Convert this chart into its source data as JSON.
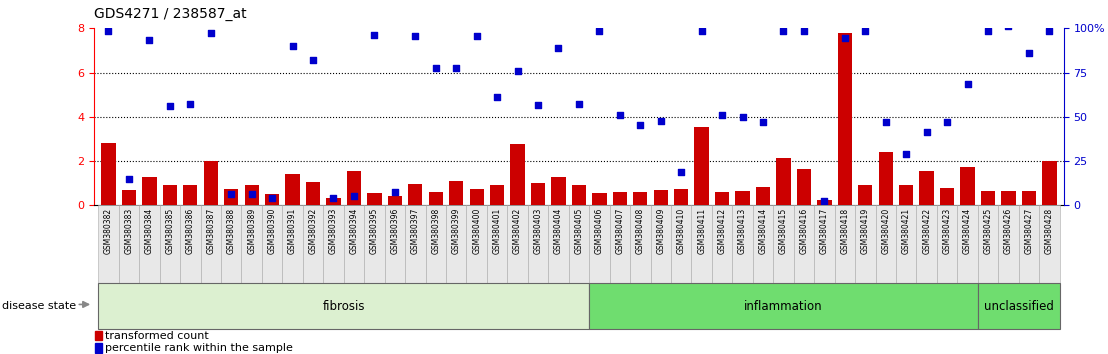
{
  "title": "GDS4271 / 238587_at",
  "samples": [
    "GSM380382",
    "GSM380383",
    "GSM380384",
    "GSM380385",
    "GSM380386",
    "GSM380387",
    "GSM380388",
    "GSM380389",
    "GSM380390",
    "GSM380391",
    "GSM380392",
    "GSM380393",
    "GSM380394",
    "GSM380395",
    "GSM380396",
    "GSM380397",
    "GSM380398",
    "GSM380399",
    "GSM380400",
    "GSM380401",
    "GSM380402",
    "GSM380403",
    "GSM380404",
    "GSM380405",
    "GSM380406",
    "GSM380407",
    "GSM380408",
    "GSM380409",
    "GSM380410",
    "GSM380411",
    "GSM380412",
    "GSM380413",
    "GSM380414",
    "GSM380415",
    "GSM380416",
    "GSM380417",
    "GSM380418",
    "GSM380419",
    "GSM380420",
    "GSM380421",
    "GSM380422",
    "GSM380423",
    "GSM380424",
    "GSM380425",
    "GSM380426",
    "GSM380427",
    "GSM380428"
  ],
  "transformed_count": [
    2.8,
    0.7,
    1.3,
    0.9,
    0.9,
    2.0,
    0.75,
    0.9,
    0.5,
    1.4,
    1.05,
    0.35,
    1.55,
    0.55,
    0.4,
    0.95,
    0.6,
    1.1,
    0.75,
    0.9,
    2.75,
    1.0,
    1.3,
    0.9,
    0.55,
    0.6,
    0.6,
    0.7,
    0.75,
    3.55,
    0.6,
    0.65,
    0.85,
    2.15,
    1.65,
    0.25,
    7.8,
    0.9,
    2.4,
    0.9,
    1.55,
    0.8,
    1.75,
    0.65,
    0.65,
    0.65,
    2.0
  ],
  "percentile_rank": [
    7.9,
    1.2,
    7.45,
    4.5,
    4.6,
    7.8,
    0.5,
    0.5,
    0.35,
    7.2,
    6.55,
    0.35,
    0.4,
    7.7,
    0.6,
    7.65,
    6.2,
    6.2,
    7.65,
    4.9,
    6.05,
    4.55,
    7.1,
    4.6,
    7.9,
    4.1,
    3.65,
    3.8,
    1.5,
    7.9,
    4.1,
    4.0,
    3.75,
    7.9,
    7.9,
    0.2,
    7.55,
    7.9,
    3.75,
    2.3,
    3.3,
    3.75,
    5.5,
    7.9,
    8.1,
    6.9,
    7.9
  ],
  "groups": [
    {
      "label": "fibrosis",
      "start": 0,
      "end": 23,
      "color": "#dcf0d0"
    },
    {
      "label": "inflammation",
      "start": 24,
      "end": 42,
      "color": "#6fdd6f"
    },
    {
      "label": "unclassified",
      "start": 43,
      "end": 46,
      "color": "#6fdd6f"
    }
  ],
  "bar_color": "#cc0000",
  "dot_color": "#0000cc",
  "left_ylim": [
    0,
    8
  ],
  "right_ylim": [
    0,
    8
  ],
  "left_yticks": [
    0,
    2,
    4,
    6,
    8
  ],
  "right_yticks_vals": [
    0,
    2,
    4,
    6,
    8
  ],
  "right_yticks_labels": [
    "0",
    "25",
    "50",
    "75",
    "100%"
  ],
  "dotted_lines": [
    2,
    4,
    6
  ],
  "plot_bg": "#ffffff",
  "tick_bg": "#e8e8e8"
}
